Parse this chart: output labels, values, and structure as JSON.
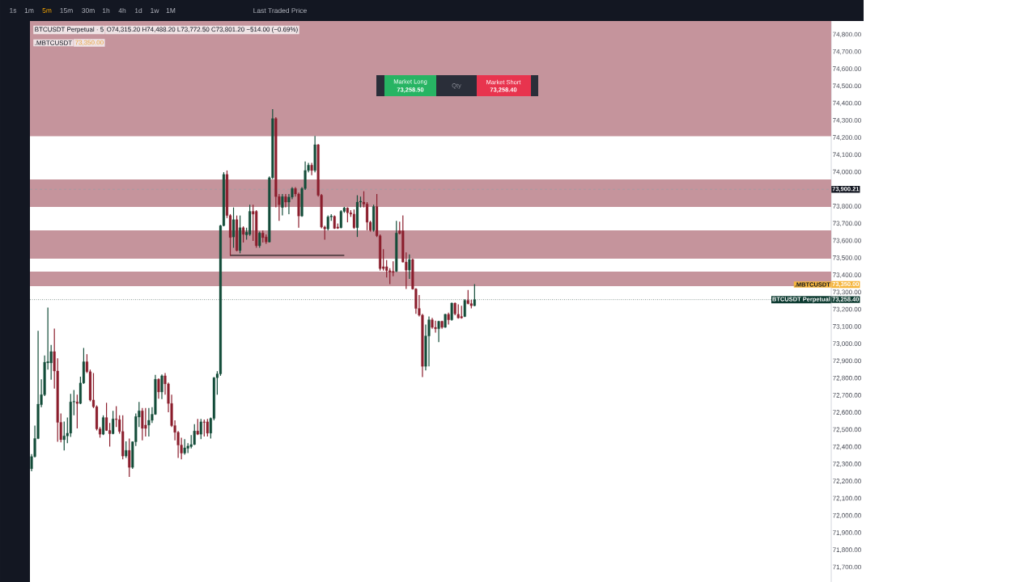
{
  "chart_data": {
    "type": "candlestick",
    "title": "BTCUSDT Perpetual · 5",
    "subtitle": "O74,315.20 H74,488.20 L73,772.50 C73,801.20 −514.00 (−0.69%)",
    "categories": [
      null,
      null,
      null,
      null,
      null,
      null,
      null,
      null,
      null,
      null,
      null,
      null,
      null,
      null,
      null,
      null,
      null,
      null,
      null,
      null,
      null,
      null,
      null,
      null,
      null,
      null,
      null,
      null,
      null,
      null,
      null,
      null,
      null,
      null,
      null,
      null,
      null,
      null,
      null,
      null,
      null,
      null,
      null,
      null,
      null,
      null,
      null,
      null,
      null,
      null,
      null,
      null,
      null,
      null,
      null,
      null,
      null,
      null,
      null,
      null,
      null,
      null,
      null,
      null,
      null,
      null,
      null,
      null,
      null,
      null,
      null,
      null,
      null,
      null,
      null,
      null,
      null,
      null,
      null,
      null,
      null,
      null,
      null,
      null,
      null,
      null,
      null,
      null,
      null,
      null,
      null,
      null,
      null,
      null,
      null,
      null,
      null,
      null,
      null,
      null,
      null,
      null,
      null,
      null,
      null,
      null,
      null,
      null,
      null,
      null,
      null,
      null,
      null,
      null,
      null,
      null,
      null,
      null,
      null,
      null,
      null,
      null,
      null,
      null,
      null,
      null,
      null,
      null,
      null,
      null,
      null,
      null,
      null,
      null,
      null,
      null,
      null,
      null,
      null,
      null,
      null,
      null,
      null,
      null,
      null,
      null,
      null,
      null,
      null,
      null,
      null,
      null,
      null,
      null,
      null,
      null,
      null,
      null,
      null,
      null,
      null,
      null,
      null,
      null,
      null,
      null,
      null,
      null,
      null,
      null,
      null,
      null,
      null,
      null,
      null,
      null,
      null,
      null,
      null,
      null,
      null,
      null,
      null,
      null,
      null,
      null,
      null,
      null,
      null,
      null,
      null,
      null,
      null,
      null,
      null,
      null,
      null,
      null,
      null,
      null,
      null,
      null,
      null,
      null,
      null,
      null,
      null,
      null,
      null,
      null,
      null,
      null,
      null,
      null,
      null,
      null,
      null,
      null,
      null,
      null,
      null,
      null,
      null,
      null,
      null,
      null,
      null,
      null,
      null,
      null,
      null,
      null,
      null,
      null,
      null,
      null,
      null,
      null,
      null,
      null,
      null,
      null,
      null,
      null,
      null,
      null
    ],
    "ohlc": [
      [
        72274,
        72360,
        72259,
        72345
      ],
      [
        72345,
        72525,
        72340,
        72450
      ],
      [
        72450,
        73077,
        72447,
        72650
      ],
      [
        72647,
        72795,
        72632,
        72705
      ],
      [
        72705,
        72933,
        72697,
        72894
      ],
      [
        72890,
        73212,
        72851,
        72898
      ],
      [
        72890,
        72995,
        72792,
        72956
      ],
      [
        72956,
        73090,
        72741,
        72843
      ],
      [
        72843,
        72917,
        72431,
        72544
      ],
      [
        72544,
        72596,
        72428,
        72443
      ],
      [
        72443,
        72549,
        72381,
        72465
      ],
      [
        72465,
        72572,
        72423,
        72481
      ],
      [
        72481,
        72710,
        72459,
        72663
      ],
      [
        72663,
        72732,
        72585,
        72666
      ],
      [
        72663,
        72705,
        72509,
        72654
      ],
      [
        72654,
        72810,
        72650,
        72773
      ],
      [
        72773,
        72977,
        72768,
        72897
      ],
      [
        72897,
        72941,
        72831,
        72839
      ],
      [
        72839,
        72851,
        72666,
        72674
      ],
      [
        72674,
        72831,
        72627,
        72635
      ],
      [
        72635,
        72643,
        72497,
        72506
      ],
      [
        72506,
        72517,
        72455,
        72475
      ],
      [
        72475,
        72585,
        72470,
        72572
      ],
      [
        72572,
        72658,
        72494,
        72497
      ],
      [
        72497,
        72541,
        72403,
        72478
      ],
      [
        72478,
        72611,
        72475,
        72564
      ],
      [
        72564,
        72638,
        72517,
        72560
      ],
      [
        72560,
        72585,
        72478,
        72491
      ],
      [
        72491,
        72585,
        72329,
        72348
      ],
      [
        72348,
        72434,
        72337,
        72381
      ],
      [
        72381,
        72450,
        72227,
        72282
      ],
      [
        72282,
        72434,
        72274,
        72431
      ],
      [
        72431,
        72596,
        72407,
        72578
      ],
      [
        72575,
        72663,
        72517,
        72611
      ],
      [
        72611,
        72627,
        72439,
        72509
      ],
      [
        72528,
        72627,
        72462,
        72509
      ],
      [
        72528,
        72627,
        72462,
        72556
      ],
      [
        72556,
        72632,
        72541,
        72591
      ],
      [
        72591,
        72820,
        72588,
        72795
      ],
      [
        72795,
        72800,
        72682,
        72721
      ],
      [
        72721,
        72823,
        72679,
        72815
      ],
      [
        72815,
        72831,
        72705,
        72768
      ],
      [
        72768,
        72776,
        72603,
        72654
      ],
      [
        72654,
        72705,
        72517,
        72525
      ],
      [
        72525,
        72556,
        72439,
        72486
      ],
      [
        72486,
        72494,
        72337,
        72412
      ],
      [
        72412,
        72455,
        72329,
        72365
      ],
      [
        72365,
        72447,
        72356,
        72396
      ],
      [
        72393,
        72423,
        72365,
        72406
      ],
      [
        72403,
        72470,
        72392,
        72415
      ],
      [
        72415,
        72533,
        72412,
        72494
      ],
      [
        72494,
        72564,
        72470,
        72475
      ],
      [
        72475,
        72564,
        72447,
        72547
      ],
      [
        72547,
        72560,
        72462,
        72544
      ],
      [
        72547,
        72564,
        72462,
        72481
      ],
      [
        72481,
        72572,
        72450,
        72567
      ],
      [
        72567,
        72807,
        72556,
        72804
      ],
      [
        72804,
        72842,
        72705,
        72826
      ],
      [
        72826,
        73693,
        72815,
        73689
      ],
      [
        73689,
        74000,
        73685,
        73987
      ],
      [
        73987,
        74010,
        73733,
        73748
      ],
      [
        73748,
        73756,
        73513,
        73620
      ],
      [
        73623,
        73795,
        73560,
        73724
      ],
      [
        73724,
        73748,
        73540,
        73544
      ],
      [
        73544,
        73748,
        73528,
        73677
      ],
      [
        73677,
        73685,
        73591,
        73638
      ],
      [
        73635,
        73677,
        73607,
        73651
      ],
      [
        73638,
        73811,
        73630,
        73772
      ],
      [
        73772,
        73811,
        73600,
        73756
      ],
      [
        73772,
        73779,
        73560,
        73572
      ],
      [
        73572,
        73654,
        73560,
        73646
      ],
      [
        73646,
        73662,
        73591,
        73619
      ],
      [
        73623,
        73638,
        73583,
        73594
      ],
      [
        73594,
        73975,
        73591,
        73968
      ],
      [
        73968,
        74367,
        73960,
        74312
      ],
      [
        74312,
        74320,
        73795,
        73858
      ],
      [
        73858,
        73873,
        73717,
        73811
      ],
      [
        73795,
        73873,
        73748,
        73858
      ],
      [
        73858,
        73873,
        73795,
        73826
      ],
      [
        73826,
        73873,
        73756,
        73855
      ],
      [
        73855,
        73913,
        73842,
        73905
      ],
      [
        73905,
        73913,
        73858,
        73873
      ],
      [
        73873,
        73881,
        73677,
        73745
      ],
      [
        73745,
        73913,
        73740,
        73905
      ],
      [
        73905,
        74062,
        73897,
        74010
      ],
      [
        74010,
        74054,
        73999,
        74041
      ],
      [
        74041,
        74054,
        73983,
        74010
      ],
      [
        74010,
        74211,
        73999,
        74160
      ],
      [
        74160,
        74164,
        73858,
        73866
      ],
      [
        73866,
        73873,
        73673,
        73681
      ],
      [
        73681,
        73688,
        73607,
        73670
      ],
      [
        73670,
        73748,
        73662,
        73740
      ],
      [
        73740,
        73756,
        73717,
        73745
      ],
      [
        73743,
        73748,
        73670,
        73673
      ],
      [
        73681,
        73701,
        73670,
        73674
      ],
      [
        73677,
        73779,
        73673,
        73772
      ],
      [
        73772,
        73798,
        73764,
        73792
      ],
      [
        73792,
        73795,
        73709,
        73764
      ],
      [
        73764,
        73779,
        73740,
        73756
      ],
      [
        73756,
        73783,
        73670,
        73677
      ],
      [
        73677,
        73866,
        73623,
        73826
      ],
      [
        73826,
        73858,
        73795,
        73831
      ],
      [
        73826,
        73889,
        73795,
        73815
      ],
      [
        73815,
        73826,
        73662,
        73709
      ],
      [
        73709,
        73717,
        73654,
        73662
      ],
      [
        73662,
        73811,
        73654,
        73800
      ],
      [
        73800,
        73873,
        73623,
        73630
      ],
      [
        73630,
        73638,
        73427,
        73439
      ],
      [
        73450,
        73552,
        73427,
        73439
      ],
      [
        73450,
        73489,
        73387,
        73427
      ],
      [
        73427,
        73442,
        73348,
        73419
      ],
      [
        73423,
        73481,
        73395,
        73417
      ],
      [
        73423,
        73717,
        73419,
        73646
      ],
      [
        73659,
        73712,
        73638,
        73643
      ],
      [
        73659,
        73748,
        73474,
        73477
      ],
      [
        73477,
        73533,
        73320,
        73430
      ],
      [
        73430,
        73521,
        73379,
        73492
      ],
      [
        73492,
        73497,
        73317,
        73320
      ],
      [
        73320,
        73325,
        73176,
        73207
      ],
      [
        73207,
        73285,
        73160,
        73168
      ],
      [
        73168,
        73176,
        72807,
        72870
      ],
      [
        72870,
        73113,
        72846,
        73047
      ],
      [
        73047,
        73160,
        72870,
        73141
      ],
      [
        73141,
        73152,
        73089,
        73097
      ],
      [
        73097,
        73136,
        73066,
        73089
      ],
      [
        73089,
        73136,
        73011,
        73132
      ],
      [
        73132,
        73136,
        73089,
        73097
      ],
      [
        73097,
        73176,
        73094,
        73173
      ],
      [
        73173,
        73183,
        73113,
        73141
      ],
      [
        73141,
        73242,
        73136,
        73238
      ],
      [
        73238,
        73242,
        73168,
        73176
      ],
      [
        73173,
        73231,
        73147,
        73152
      ],
      [
        73160,
        73223,
        73147,
        73152
      ],
      [
        73160,
        73262,
        73157,
        73254
      ],
      [
        73254,
        73314,
        73231,
        73235
      ],
      [
        73235,
        73257,
        73207,
        73223
      ],
      [
        73223,
        73348,
        73220,
        73258
      ],
      null,
      null,
      null,
      null,
      null,
      null,
      null,
      null,
      null,
      null,
      null,
      null,
      null,
      null,
      null,
      null,
      null,
      null,
      null,
      null,
      null,
      null,
      null,
      null,
      null,
      null,
      null,
      null,
      null,
      null,
      null,
      null,
      null,
      null,
      null,
      null,
      null,
      null,
      null,
      null,
      null,
      null,
      null,
      null,
      null,
      null,
      null,
      null,
      null,
      null,
      null,
      null,
      null,
      null,
      null,
      null,
      null,
      null,
      null,
      null,
      null,
      null,
      null,
      null,
      null,
      null,
      null,
      null,
      null,
      null,
      null,
      null,
      null,
      null,
      null,
      null,
      null,
      null,
      null,
      null,
      null,
      null,
      null,
      null,
      null,
      null,
      null,
      null,
      null,
      null,
      null,
      null,
      null,
      null,
      null,
      null,
      null,
      null,
      null,
      null,
      null,
      null,
      null,
      null,
      null,
      null,
      null,
      null,
      null
    ],
    "colors": [
      "#144d3a",
      "#144d3a",
      "#144d3a",
      "#144d3a",
      "#144d3a",
      "#144d3a",
      "#144d3a",
      "#8b1e2d",
      "#8b1e2d",
      "#8b1e2d",
      "#144d3a",
      "#144d3a",
      "#144d3a",
      "#144d3a",
      "#8b1e2d",
      "#144d3a",
      "#144d3a",
      "#8b1e2d",
      "#8b1e2d",
      "#8b1e2d",
      "#8b1e2d",
      "#8b1e2d",
      "#144d3a",
      "#8b1e2d",
      "#8b1e2d",
      "#144d3a",
      "#8b1e2d",
      "#8b1e2d",
      "#8b1e2d",
      "#144d3a",
      "#8b1e2d",
      "#144d3a",
      "#144d3a",
      "#144d3a",
      "#8b1e2d",
      "#8b1e2d",
      "#144d3a",
      "#144d3a",
      "#144d3a",
      "#8b1e2d",
      "#144d3a",
      "#8b1e2d",
      "#8b1e2d",
      "#8b1e2d",
      "#8b1e2d",
      "#8b1e2d",
      "#8b1e2d",
      "#144d3a",
      "#144d3a",
      "#144d3a",
      "#144d3a",
      "#8b1e2d",
      "#144d3a",
      "#8b1e2d",
      "#8b1e2d",
      "#144d3a",
      "#144d3a",
      "#144d3a",
      "#144d3a",
      "#144d3a",
      "#8b1e2d",
      "#8b1e2d",
      "#144d3a",
      "#8b1e2d",
      "#144d3a",
      "#8b1e2d",
      "#144d3a",
      "#144d3a",
      "#8b1e2d",
      "#8b1e2d",
      "#144d3a",
      "#8b1e2d",
      "#8b1e2d",
      "#144d3a",
      "#144d3a",
      "#8b1e2d",
      "#8b1e2d",
      "#144d3a",
      "#8b1e2d",
      "#144d3a",
      "#144d3a",
      "#8b1e2d",
      "#8b1e2d",
      "#144d3a",
      "#144d3a",
      "#144d3a",
      "#8b1e2d",
      "#144d3a",
      "#8b1e2d",
      "#8b1e2d",
      "#8b1e2d",
      "#144d3a",
      "#144d3a",
      "#8b1e2d",
      "#8b1e2d",
      "#144d3a",
      "#144d3a",
      "#8b1e2d",
      "#8b1e2d",
      "#8b1e2d",
      "#144d3a",
      "#144d3a",
      "#8b1e2d",
      "#8b1e2d",
      "#8b1e2d",
      "#144d3a",
      "#8b1e2d",
      "#8b1e2d",
      "#8b1e2d",
      "#8b1e2d",
      "#8b1e2d",
      "#8b1e2d",
      "#144d3a",
      "#8b1e2d",
      "#8b1e2d",
      "#8b1e2d",
      "#144d3a",
      "#8b1e2d",
      "#8b1e2d",
      "#8b1e2d",
      "#8b1e2d",
      "#144d3a",
      "#144d3a",
      "#8b1e2d",
      "#8b1e2d",
      "#144d3a",
      "#8b1e2d",
      "#144d3a",
      "#8b1e2d",
      "#144d3a",
      "#8b1e2d",
      "#8b1e2d",
      "#8b1e2d",
      "#144d3a",
      "#8b1e2d",
      "#8b1e2d",
      "#144d3a",
      null,
      null,
      null,
      null,
      null,
      null,
      null,
      null,
      null,
      null,
      null,
      null,
      null,
      null,
      null,
      null,
      null,
      null,
      null,
      null,
      null,
      null,
      null,
      null,
      null,
      null,
      null,
      null,
      null,
      null,
      null,
      null,
      null,
      null,
      null,
      null,
      null,
      null,
      null,
      null,
      null,
      null,
      null,
      null,
      null,
      null,
      null,
      null,
      null,
      null,
      null,
      null,
      null,
      null,
      null,
      null,
      null,
      null,
      null,
      null,
      null,
      null,
      null,
      null,
      null,
      null,
      null,
      null,
      null,
      null,
      null,
      null,
      null,
      null,
      null,
      null,
      null,
      null,
      null,
      null,
      null,
      null,
      null,
      null,
      null,
      null,
      null,
      null,
      null,
      null,
      null,
      null,
      null,
      null,
      null,
      null,
      null,
      null,
      null,
      null,
      null,
      null,
      null,
      null,
      null,
      null,
      null,
      null,
      null
    ],
    "series": [
      {
        "type": "line",
        "color": "#000000",
        "values": [
          null,
          null,
          null,
          null,
          null,
          null,
          null,
          null,
          null,
          null,
          null,
          null,
          null,
          null,
          null,
          null,
          null,
          null,
          null,
          null,
          null,
          null,
          null,
          null,
          null,
          null,
          null,
          null,
          null,
          null,
          null,
          null,
          null,
          null,
          null,
          null,
          null,
          null,
          null,
          null,
          null,
          null,
          null,
          null,
          null,
          null,
          null,
          null,
          null,
          null,
          null,
          null,
          null,
          null,
          null,
          null,
          null,
          null,
          null,
          null,
          null,
          73516,
          73516,
          73516,
          73516,
          73516,
          73516,
          73516,
          73516,
          73516,
          73516,
          73516,
          73516,
          73516,
          73516,
          73516,
          73516,
          73516,
          73516,
          73516,
          73516,
          73516,
          73516,
          73516,
          73516,
          73516,
          73516,
          73516,
          73516,
          73516,
          73516,
          73516,
          73516,
          73516,
          73516,
          73516,
          73516,
          null,
          null,
          null,
          null,
          null,
          null,
          null,
          null,
          null,
          null,
          null,
          null,
          null,
          null,
          null,
          null,
          null,
          null,
          null,
          null,
          null,
          null,
          null,
          null,
          null,
          null,
          null,
          null,
          null,
          null,
          null,
          null,
          null,
          null,
          null,
          null,
          null,
          null,
          null,
          null,
          null,
          null,
          null,
          null,
          null,
          null,
          null,
          null,
          null,
          null,
          null,
          null,
          null,
          null,
          null,
          null,
          null,
          null,
          null,
          null,
          null,
          null,
          null,
          null,
          null,
          null,
          null,
          null,
          null,
          null,
          null,
          null,
          null,
          null,
          null,
          null,
          null,
          null,
          null,
          null,
          null,
          null,
          null,
          null,
          null,
          null,
          null,
          null,
          null,
          null,
          null,
          null,
          null,
          null,
          null,
          null,
          null,
          null,
          null,
          null,
          null,
          null,
          null,
          null,
          null,
          null,
          null,
          null,
          null,
          null,
          null,
          null,
          null,
          null,
          null,
          null,
          null,
          null,
          null,
          null,
          null,
          null,
          null,
          null,
          null,
          null,
          null,
          null,
          null,
          null,
          null,
          null,
          null,
          null,
          null,
          null,
          null,
          null,
          null,
          null,
          null,
          null,
          null,
          null,
          null,
          null,
          null,
          null,
          null
        ]
      }
    ],
    "ylim": [
      71615,
      74880
    ],
    "yticks": [
      {
        "value": 71700,
        "label": "71,700.00"
      },
      {
        "value": 71800,
        "label": "71,800.00"
      },
      {
        "value": 71900,
        "label": "71,900.00"
      },
      {
        "value": 72000,
        "label": "72,000.00"
      },
      {
        "value": 72100,
        "label": "72,100.00"
      },
      {
        "value": 72200,
        "label": "72,200.00"
      },
      {
        "value": 72300,
        "label": "72,300.00"
      },
      {
        "value": 72400,
        "label": "72,400.00"
      },
      {
        "value": 72500,
        "label": "72,500.00"
      },
      {
        "value": 72600,
        "label": "72,600.00"
      },
      {
        "value": 72700,
        "label": "72,700.00"
      },
      {
        "value": 72800,
        "label": "72,800.00"
      },
      {
        "value": 72900,
        "label": "72,900.00"
      },
      {
        "value": 73000,
        "label": "73,000.00"
      },
      {
        "value": 73100,
        "label": "73,100.00"
      },
      {
        "value": 73200,
        "label": "73,200.00"
      },
      {
        "value": 73300,
        "label": "73,300.00"
      },
      {
        "value": 73400,
        "label": "73,400.00"
      },
      {
        "value": 73500,
        "label": "73,500.00"
      },
      {
        "value": 73600,
        "label": "73,600.00"
      },
      {
        "value": 73700,
        "label": "73,700.00"
      },
      {
        "value": 73800,
        "label": "73,800.00"
      },
      {
        "value": 73900,
        "label": null
      },
      {
        "value": 74000,
        "label": "74,000.00"
      },
      {
        "value": 74100,
        "label": "74,100.00"
      },
      {
        "value": 74200,
        "label": "74,200.00"
      },
      {
        "value": 74300,
        "label": "74,300.00"
      },
      {
        "value": 74400,
        "label": "74,400.00"
      },
      {
        "value": 74500,
        "label": "74,500.00"
      },
      {
        "value": 74600,
        "label": "74,600.00"
      },
      {
        "value": 74700,
        "label": "74,700.00"
      },
      {
        "value": 74800,
        "label": "74,800.00"
      }
    ],
    "tick_labels": "y",
    "bands": [
      {
        "axis": "y",
        "from": 74210,
        "to": 74880,
        "color": "#c5949c"
      },
      {
        "axis": "y",
        "from": 73798,
        "to": 73958,
        "color": "#c5949c"
      },
      {
        "axis": "y",
        "from": 73497,
        "to": 73662,
        "color": "#c5949c"
      },
      {
        "axis": "y",
        "from": 73337,
        "to": 73422,
        "color": "#c5949c"
      }
    ],
    "ref_lines": [
      {
        "axis": "y",
        "value": 73900.21,
        "label": "73,900.21",
        "line_style": "dashed",
        "color": "#9a9da5"
      },
      {
        "axis": "y",
        "value": 73258.4,
        "label": "73,258.40",
        "line_style": "dotted",
        "color": "#5b736c"
      }
    ],
    "annotations": [
      ".MBTCUSDT",
      "73,350.00",
      "1s",
      "1m",
      "5m",
      "15m",
      "30m",
      "1h",
      "4h",
      "1d",
      "1w",
      "1M",
      "Last Traded Price",
      "Market Long",
      "73,258.50",
      "Qty",
      "Market Short",
      "73,258.40",
      ".MBTCUSDT",
      "73,350.00",
      {
        "text": "BTCUSDT Perpetual",
        "y": 73258.4
      }
    ]
  }
}
